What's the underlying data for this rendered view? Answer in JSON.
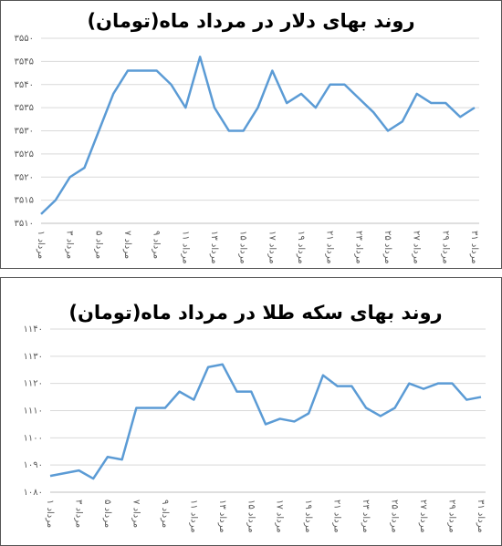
{
  "chart_data": [
    {
      "type": "line",
      "title": "روند بهای دلار در مرداد ماه(تومان)",
      "color": "#5b9bd5",
      "grid": true,
      "categories": [
        "۱ مرداد",
        null,
        "۳ مرداد",
        null,
        "۵ مرداد",
        null,
        "۷ مرداد",
        null,
        "۹ مرداد",
        null,
        "۱۱ مرداد",
        null,
        "۱۳ مرداد",
        null,
        "۱۵ مرداد",
        null,
        "۱۷ مرداد",
        null,
        "۱۹ مرداد",
        null,
        "۲۱ مرداد",
        null,
        "۲۳ مرداد",
        null,
        "۲۵ مرداد",
        null,
        "۲۷ مرداد",
        null,
        "۲۹ مرداد",
        null,
        "۳۱ مرداد"
      ],
      "values": [
        3512,
        3515,
        3520,
        3522,
        3530,
        3538,
        3543,
        3543,
        3543,
        3540,
        3535,
        3546,
        3535,
        3530,
        3530,
        3535,
        3543,
        3536,
        3538,
        3535,
        3540,
        3540,
        3537,
        3534,
        3530,
        3532,
        3538,
        3536,
        3536,
        3533,
        3535
      ],
      "ylim": [
        3510,
        3550
      ],
      "yticks": [
        {
          "value": 3510,
          "label": "۳۵۱۰"
        },
        {
          "value": 3515,
          "label": "۳۵۱۵"
        },
        {
          "value": 3520,
          "label": "۳۵۲۰"
        },
        {
          "value": 3525,
          "label": "۳۵۲۵"
        },
        {
          "value": 3530,
          "label": "۳۵۳۰"
        },
        {
          "value": 3535,
          "label": "۳۵۳۵"
        },
        {
          "value": 3540,
          "label": "۳۵۴۰"
        },
        {
          "value": 3545,
          "label": "۳۵۴۵"
        },
        {
          "value": 3550,
          "label": "۳۵۵۰"
        }
      ]
    },
    {
      "type": "line",
      "title": "روند بهای سکه طلا در مرداد ماه(تومان)",
      "color": "#5b9bd5",
      "grid": true,
      "categories": [
        "۱ مرداد",
        null,
        "۳ مرداد",
        null,
        "۵ مرداد",
        null,
        "۷ مرداد",
        null,
        "۹ مرداد",
        null,
        "۱۱ مرداد",
        null,
        "۱۳ مرداد",
        null,
        "۱۵ مرداد",
        null,
        "۱۷ مرداد",
        null,
        "۱۹ مرداد",
        null,
        "۲۱ مرداد",
        null,
        "۲۳ مرداد",
        null,
        "۲۵ مرداد",
        null,
        "۲۷ مرداد",
        null,
        "۲۹ مرداد",
        null,
        "۳۱ مرداد"
      ],
      "values": [
        1086,
        1087,
        1088,
        1085,
        1093,
        1092,
        1111,
        1111,
        1111,
        1117,
        1114,
        1126,
        1127,
        1117,
        1117,
        1105,
        1107,
        1106,
        1109,
        1123,
        1119,
        1119,
        1111,
        1108,
        1111,
        1120,
        1118,
        1120,
        1120,
        1114,
        1115
      ],
      "ylim": [
        1080,
        1140
      ],
      "yticks": [
        {
          "value": 1080,
          "label": "۱۰۸۰"
        },
        {
          "value": 1090,
          "label": "۱۰۹۰"
        },
        {
          "value": 1100,
          "label": "۱۱۰۰"
        },
        {
          "value": 1110,
          "label": "۱۱۱۰"
        },
        {
          "value": 1120,
          "label": "۱۱۲۰"
        },
        {
          "value": 1130,
          "label": "۱۱۳۰"
        },
        {
          "value": 1140,
          "label": "۱۱۴۰"
        }
      ]
    }
  ]
}
